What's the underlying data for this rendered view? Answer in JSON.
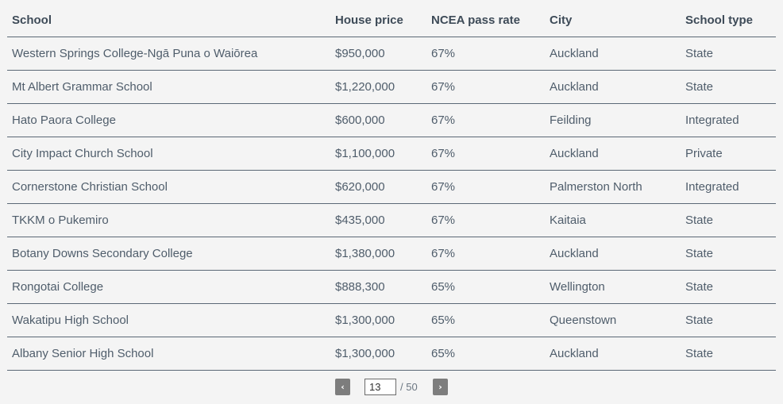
{
  "table": {
    "headers": {
      "school": "School",
      "price": "House price",
      "ncea": "NCEA pass rate",
      "city": "City",
      "type": "School type"
    },
    "rows": [
      {
        "school": "Western Springs College-Ngā Puna o Waiōrea",
        "price": "$950,000",
        "ncea": "67%",
        "city": "Auckland",
        "type": "State"
      },
      {
        "school": "Mt Albert Grammar School",
        "price": "$1,220,000",
        "ncea": "67%",
        "city": "Auckland",
        "type": "State"
      },
      {
        "school": "Hato Paora College",
        "price": "$600,000",
        "ncea": "67%",
        "city": "Feilding",
        "type": "Integrated"
      },
      {
        "school": "City Impact Church School",
        "price": "$1,100,000",
        "ncea": "67%",
        "city": "Auckland",
        "type": "Private"
      },
      {
        "school": "Cornerstone Christian School",
        "price": "$620,000",
        "ncea": "67%",
        "city": "Palmerston North",
        "type": "Integrated"
      },
      {
        "school": "TKKM o Pukemiro",
        "price": "$435,000",
        "ncea": "67%",
        "city": "Kaitaia",
        "type": "State"
      },
      {
        "school": "Botany Downs Secondary College",
        "price": "$1,380,000",
        "ncea": "67%",
        "city": "Auckland",
        "type": "State"
      },
      {
        "school": "Rongotai College",
        "price": "$888,300",
        "ncea": "65%",
        "city": "Wellington",
        "type": "State"
      },
      {
        "school": "Wakatipu High School",
        "price": "$1,300,000",
        "ncea": "65%",
        "city": "Queenstown",
        "type": "State"
      },
      {
        "school": "Albany Senior High School",
        "price": "$1,300,000",
        "ncea": "65%",
        "city": "Auckland",
        "type": "State"
      }
    ]
  },
  "pagination": {
    "prev_label": "‹",
    "next_label": "›",
    "current_page": "13",
    "total_label": "/ 50",
    "prev_icon": "chevron-left-icon",
    "next_icon": "chevron-right-icon"
  }
}
